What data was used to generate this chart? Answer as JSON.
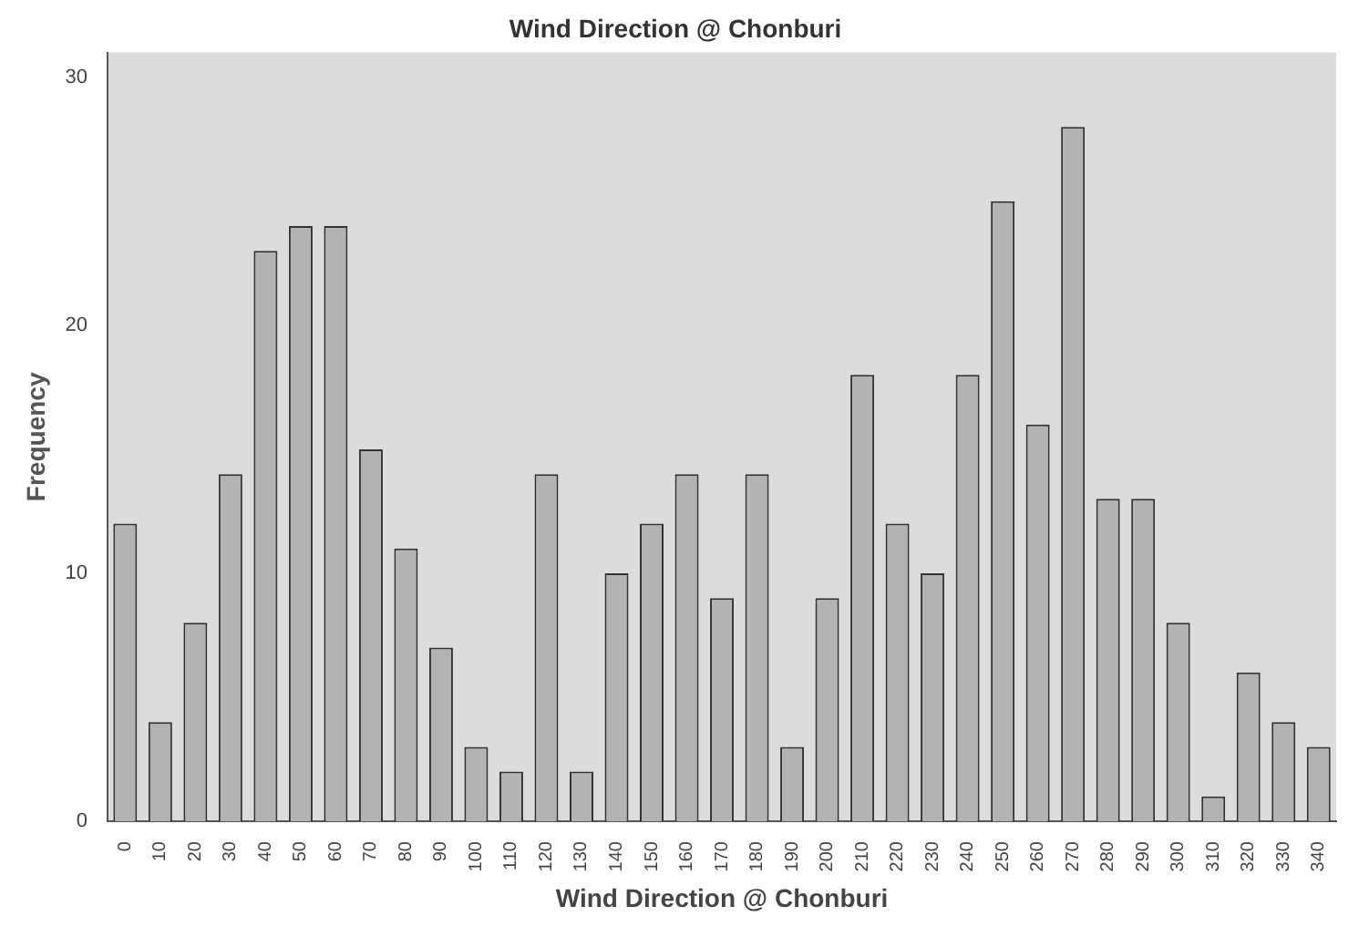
{
  "chart_data": {
    "type": "bar",
    "title": "Wind Direction @ Chonburi",
    "xlabel": "Wind Direction @ Chonburi",
    "ylabel": "Frequency",
    "categories": [
      "0",
      "10",
      "20",
      "30",
      "40",
      "50",
      "60",
      "70",
      "80",
      "90",
      "100",
      "110",
      "120",
      "130",
      "140",
      "150",
      "160",
      "170",
      "180",
      "190",
      "200",
      "210",
      "220",
      "230",
      "240",
      "250",
      "260",
      "270",
      "280",
      "290",
      "300",
      "310",
      "320",
      "330",
      "340"
    ],
    "values": [
      12,
      4,
      8,
      14,
      23,
      24,
      24,
      15,
      11,
      7,
      3,
      2,
      14,
      2,
      10,
      12,
      14,
      9,
      14,
      3,
      9,
      18,
      12,
      10,
      18,
      25,
      16,
      28,
      13,
      13,
      8,
      1,
      6,
      4,
      3
    ],
    "color": "#b3b3b3",
    "ylim": [
      0,
      31
    ],
    "yticks": [
      0,
      10,
      20,
      30
    ],
    "grid": false,
    "legend": false
  }
}
